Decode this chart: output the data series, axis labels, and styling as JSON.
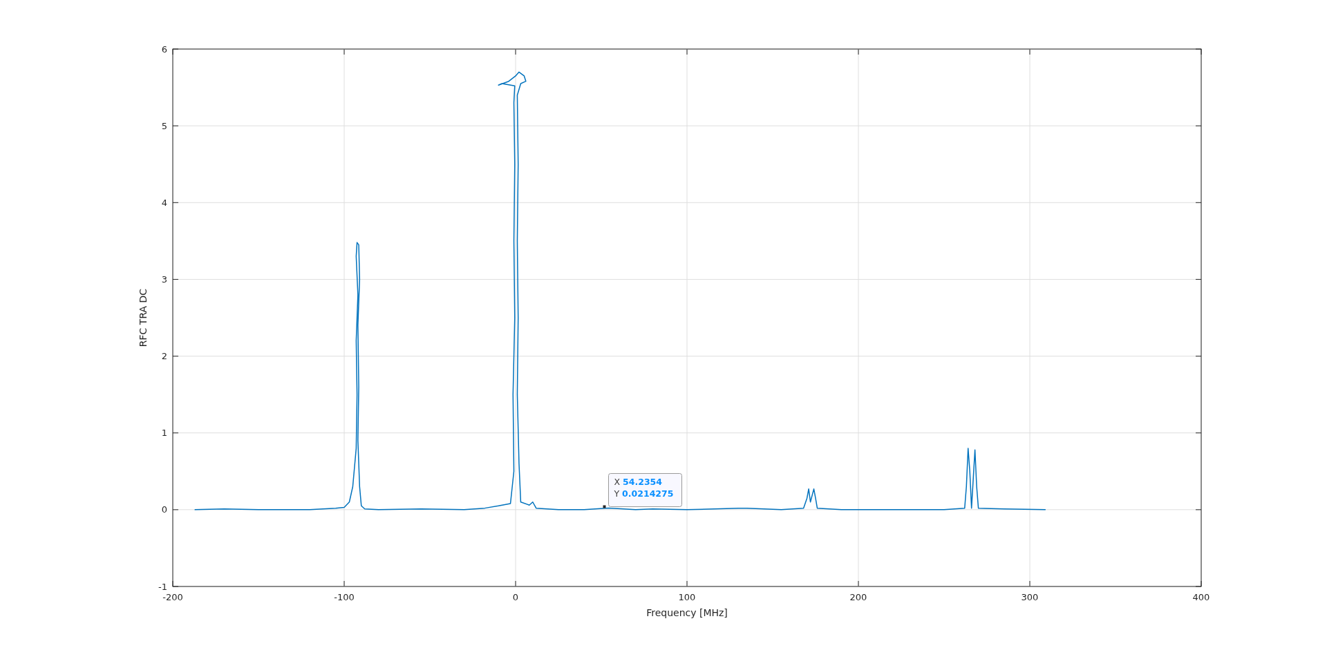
{
  "chart_data": {
    "type": "line",
    "xlabel": "Frequency [MHz]",
    "ylabel": "RFC TRA DC",
    "xlim": [
      -200,
      400
    ],
    "xticks": [
      -200,
      -100,
      0,
      100,
      200,
      300,
      400
    ],
    "ylim": [
      -1,
      6
    ],
    "yticks": [
      -1,
      0,
      1,
      2,
      3,
      4,
      5,
      6
    ],
    "grid": true,
    "annotations": [
      {
        "text": "X 54.2354\nY 0.0214275",
        "x": 54.2354,
        "y": 0.0214275
      }
    ],
    "series": [
      {
        "color": "#0072bd",
        "x": [
          -187,
          -170,
          -150,
          -120,
          -105,
          -100,
          -97,
          -95,
          -93,
          -92.5,
          -93,
          -92,
          -93,
          -92.5,
          -91.5,
          -91,
          -92,
          -91.5,
          -92,
          -91,
          -90,
          -88,
          -80,
          -55,
          -30,
          -18,
          -10,
          -3,
          -1,
          -1.5,
          -0.5,
          -1,
          -0.5,
          -1,
          -0.5,
          -8,
          -10,
          -4,
          0,
          2,
          5,
          6,
          3,
          1,
          1.5,
          1,
          1.5,
          1,
          2,
          3,
          8,
          10,
          12,
          25,
          40,
          54.2354,
          70,
          80,
          100,
          130,
          135,
          155,
          168,
          170,
          171,
          172,
          174,
          175,
          176,
          190,
          220,
          250,
          262,
          263,
          264,
          265,
          266,
          267,
          268,
          269,
          270,
          285,
          309
        ],
        "values": [
          0,
          0.01,
          0,
          0,
          0.02,
          0.03,
          0.1,
          0.3,
          0.8,
          1.5,
          2.2,
          2.8,
          3.3,
          3.48,
          3.45,
          3.0,
          2.4,
          1.6,
          0.9,
          0.3,
          0.05,
          0.01,
          0,
          0.01,
          0,
          0.02,
          0.05,
          0.08,
          0.5,
          1.5,
          2.5,
          3.5,
          4.5,
          5.3,
          5.52,
          5.55,
          5.53,
          5.58,
          5.65,
          5.7,
          5.65,
          5.58,
          5.55,
          5.4,
          4.5,
          3.5,
          2.5,
          1.5,
          0.6,
          0.1,
          0.06,
          0.1,
          0.02,
          0,
          0,
          0.0214275,
          0,
          0.01,
          0,
          0.02,
          0.02,
          0,
          0.02,
          0.15,
          0.27,
          0.1,
          0.27,
          0.15,
          0.02,
          0,
          0,
          0,
          0.02,
          0.3,
          0.8,
          0.5,
          0.02,
          0.4,
          0.78,
          0.3,
          0.02,
          0.01,
          0
        ]
      }
    ]
  }
}
